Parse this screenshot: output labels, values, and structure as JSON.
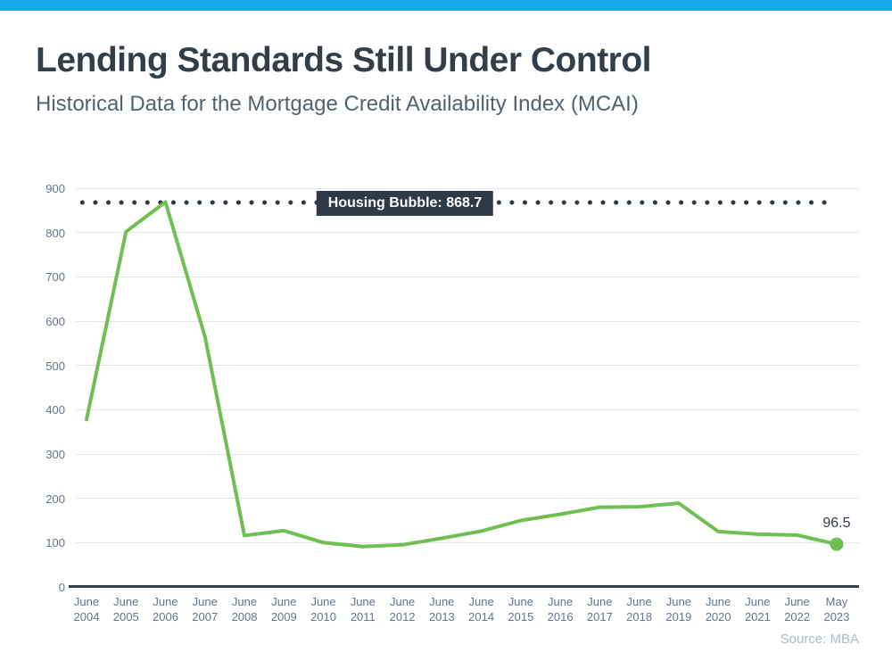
{
  "theme": {
    "accent_bar_color": "#18a9ed",
    "title_color": "#333e48",
    "subtitle_color": "#51626e",
    "axis_label_color": "#64748b",
    "grid_color": "#e3e6ea",
    "axis_line_color": "#333f48",
    "annotation_color": "#2e3b47",
    "line_color": "#6fbf53",
    "source_color": "#b0bac3"
  },
  "chart_data": {
    "type": "line",
    "title": "Lending Standards Still Under Control",
    "subtitle": "Historical Data for the Mortgage Credit Availability Index (MCAI)",
    "categories": [
      "June 2004",
      "June 2005",
      "June 2006",
      "June 2007",
      "June 2008",
      "June 2009",
      "June 2010",
      "June 2011",
      "June 2012",
      "June 2013",
      "June 2014",
      "June 2015",
      "June 2016",
      "June 2017",
      "June 2018",
      "June 2019",
      "June 2020",
      "June 2021",
      "June 2022",
      "May 2023"
    ],
    "values": [
      378,
      802,
      868.7,
      565,
      116,
      127,
      100,
      91,
      95,
      110,
      126,
      150,
      164,
      180,
      181,
      189,
      125,
      119,
      117,
      96.5
    ],
    "ylim": [
      0,
      900
    ],
    "yticks": [
      0,
      100,
      200,
      300,
      400,
      500,
      600,
      700,
      800,
      900
    ],
    "grid": true,
    "legend": "none",
    "annotation": {
      "label": "Housing Bubble: 868.7",
      "value": 868.7,
      "style": "dotted"
    },
    "end_point_label": "96.5",
    "source": "Source: MBA"
  }
}
